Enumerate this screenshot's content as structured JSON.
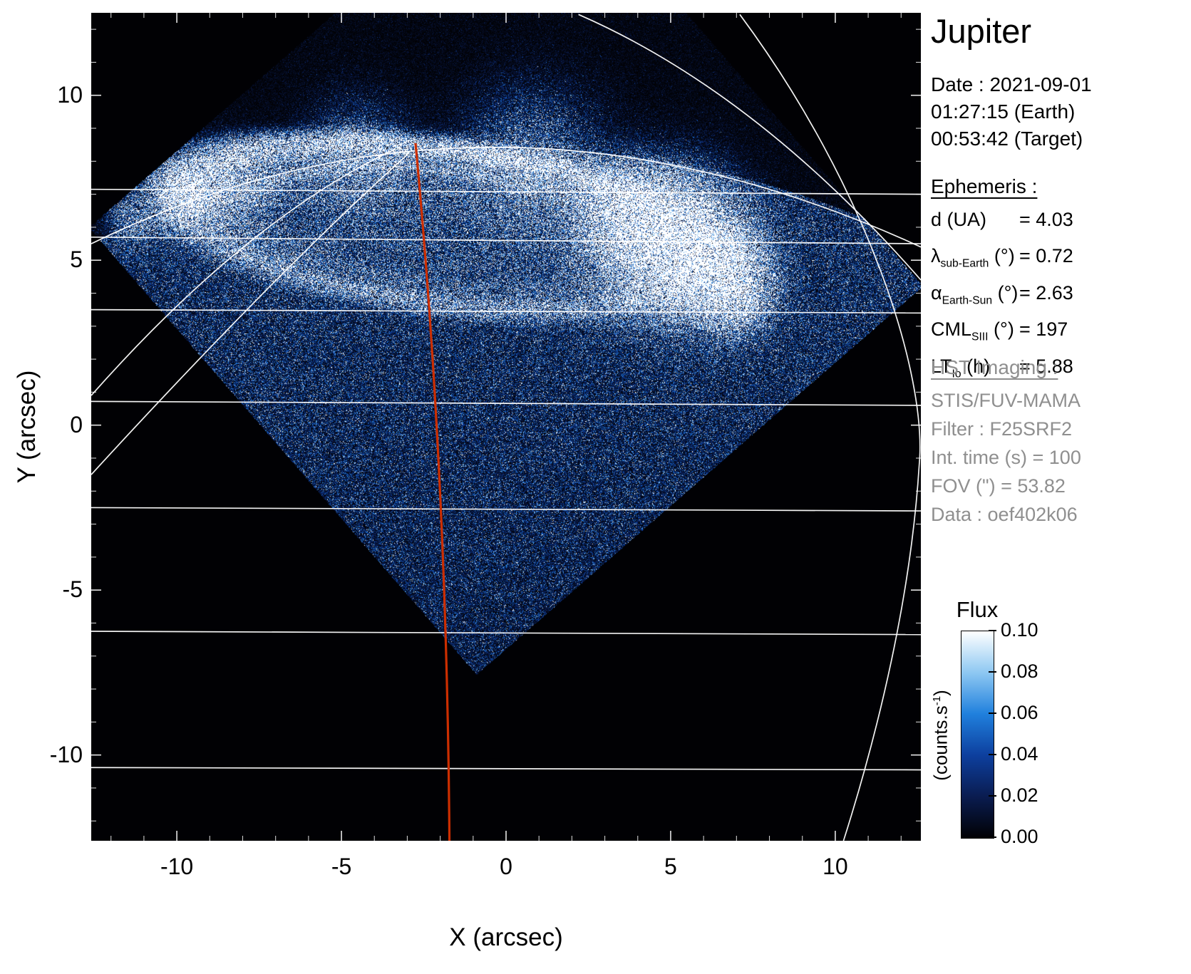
{
  "header": {
    "title": "Jupiter"
  },
  "observation": {
    "date": "Date : 2021-09-01",
    "time_earth": "01:27:15 (Earth)",
    "time_target": "00:53:42 (Target)"
  },
  "ephemeris": {
    "heading": "Ephemeris :",
    "rows": [
      {
        "symbol": "d",
        "subscript": "",
        "unit": "(UA)",
        "value": "= 4.03"
      },
      {
        "symbol": "λ",
        "subscript": "sub-Earth",
        "unit": "(°)",
        "value": "= 0.72"
      },
      {
        "symbol": "α",
        "subscript": "Earth-Sun",
        "unit": "(°)",
        "value": "= 2.63"
      },
      {
        "symbol": "CML",
        "subscript": "SIII",
        "unit": "(°)",
        "value": "= 197"
      },
      {
        "symbol": "LT",
        "subscript": "Io",
        "unit": "(h)",
        "value": "= 5.88"
      }
    ]
  },
  "hst": {
    "heading": "HST Imaging :",
    "lines": [
      "STIS/FUV-MAMA",
      "Filter : F25SRF2",
      "Int. time (s) = 100",
      "FOV (\") = 53.82",
      "Data : oef402k06"
    ]
  },
  "colorbar": {
    "title": "Flux",
    "unit_pre": "(counts.s",
    "unit_sup": "-1",
    "unit_post": ")",
    "ticks": [
      "0.10",
      "0.08",
      "0.06",
      "0.04",
      "0.02",
      "0.00"
    ]
  },
  "chart_data": {
    "type": "heatmap",
    "title": "Jupiter",
    "description": "HST/STIS far-ultraviolet image of Jupiter's northern aurora. The detector field of view is a rotated square (diamond) filled with photon-counting speckle; the bright auroral oval with a saturated dusk-side storm sits near the top, a planetographic graticule and limb are overlaid in white, and the central meridian (CML) is drawn in red.",
    "xlabel": "X (arcsec)",
    "ylabel": "Y (arcsec)",
    "xlim": [
      -12.6,
      12.6
    ],
    "ylim": [
      -12.6,
      12.5
    ],
    "xticks": [
      -10,
      -5,
      0,
      5,
      10
    ],
    "yticks": [
      10,
      5,
      0,
      -5,
      -10
    ],
    "flux_min": 0.0,
    "flux_max": 0.1,
    "flux_units": "counts.s-1",
    "colormap": [
      "#010104",
      "#0a1c50",
      "#0d3f9e",
      "#2080dd",
      "#8ec8f2",
      "#ffffff"
    ],
    "disk_mean": 0.315,
    "sky_mean": 0.045,
    "limb_circle": {
      "cx": 0,
      "cy": -20.5,
      "r": 28.9
    },
    "fov_corners": [
      [
        -0.89,
        -7.57
      ],
      [
        12.67,
        4.21
      ],
      [
        0.89,
        17.77
      ],
      [
        -12.67,
        5.99
      ]
    ],
    "aurora": {
      "oval_center": [
        -1.8,
        6.0
      ],
      "oval_rx": 8.1,
      "oval_ry": 2.35,
      "oval_tilt_deg": -7,
      "ring_width": 0.1,
      "inner_rx": 6.3,
      "inner_ry": 1.7,
      "spots": [
        [
          -9.75,
          6.95,
          0.5,
          1.6
        ],
        [
          -11.4,
          6.3,
          0.45,
          0.5
        ],
        [
          -8.4,
          7.35,
          0.7,
          0.5
        ],
        [
          3.6,
          6.3,
          0.9,
          0.9
        ],
        [
          5.0,
          5.6,
          1.2,
          1.7
        ],
        [
          6.3,
          4.6,
          0.9,
          1.3
        ],
        [
          7.1,
          3.85,
          0.6,
          0.8
        ],
        [
          0.8,
          8.15,
          1.3,
          0.35
        ],
        [
          -4.5,
          8.3,
          1.0,
          0.3
        ]
      ]
    },
    "graticule": {
      "color": "#ffffff",
      "latitude_lines": [
        {
          "x": [
            -12.6,
            12.6
          ],
          "y": [
            7.15,
            7.0
          ]
        },
        {
          "x": [
            -12.6,
            12.6
          ],
          "y": [
            5.7,
            5.5
          ]
        },
        {
          "x": [
            -12.6,
            12.6
          ],
          "y": [
            3.5,
            3.4
          ]
        },
        {
          "x": [
            -12.6,
            12.6
          ],
          "y": [
            0.72,
            0.6
          ]
        },
        {
          "x": [
            -12.6,
            12.6
          ],
          "y": [
            -2.5,
            -2.6
          ]
        },
        {
          "x": [
            -12.6,
            12.6
          ],
          "y": [
            -6.25,
            -6.35
          ]
        },
        {
          "x": [
            -12.6,
            12.6
          ],
          "y": [
            -10.38,
            -10.45
          ]
        }
      ],
      "quad_arcs": [
        {
          "name": "limb-arc",
          "pts": [
            [
              -12.6,
              5.5
            ],
            [
              -0.5,
              11.4
            ],
            [
              12.6,
              5.4
            ]
          ]
        },
        {
          "name": "meridian-arc-left-1",
          "pts": [
            [
              -12.6,
              0.9
            ],
            [
              -7.8,
              6.3
            ],
            [
              -3.4,
              8.35
            ]
          ]
        },
        {
          "name": "meridian-arc-left-2",
          "pts": [
            [
              -12.6,
              -1.5
            ],
            [
              -7.0,
              4.6
            ],
            [
              -3.0,
              8.2
            ]
          ]
        },
        {
          "name": "meridian-arc-top-right",
          "pts": [
            [
              2.2,
              12.45
            ],
            [
              7.6,
              10.1
            ],
            [
              12.6,
              4.4
            ]
          ]
        }
      ],
      "cubic_arcs": [
        {
          "name": "limb-arc-right",
          "pts": [
            [
              7.1,
              12.45
            ],
            [
              11.0,
              7.2
            ],
            [
              12.8,
              1.5
            ],
            [
              12.55,
              -1.2
            ],
            [
              12.3,
              -5.2
            ],
            [
              11.3,
              -9.3
            ],
            [
              10.25,
              -12.6
            ]
          ]
        }
      ]
    },
    "cml_meridian": {
      "color": "#cc2e00",
      "pts": [
        [
          -2.75,
          8.55
        ],
        [
          -1.8,
          -1.5
        ],
        [
          -1.72,
          -12.6
        ]
      ]
    }
  }
}
